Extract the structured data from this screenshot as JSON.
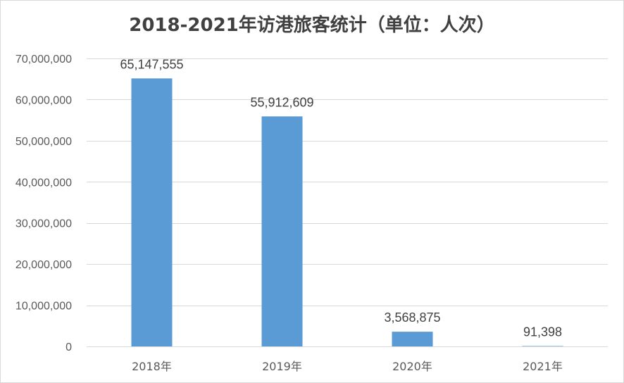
{
  "chart_data": {
    "type": "bar",
    "title": "2018-2021年访港旅客统计（单位：人次）",
    "categories": [
      "2018年",
      "2019年",
      "2020年",
      "2021年"
    ],
    "values": [
      65147555,
      55912609,
      3568875,
      91398
    ],
    "value_labels": [
      "65,147,555",
      "55,912,609",
      "3,568,875",
      "91,398"
    ],
    "ylim": [
      0,
      70000000
    ],
    "y_ticks": [
      0,
      10000000,
      20000000,
      30000000,
      40000000,
      50000000,
      60000000,
      70000000
    ],
    "y_tick_labels": [
      "0",
      "10,000,000",
      "20,000,000",
      "30,000,000",
      "40,000,000",
      "50,000,000",
      "60,000,000",
      "70,000,000"
    ],
    "grid": true,
    "legend": "none",
    "xlabel": "",
    "ylabel": "",
    "bar_color": "#5b9bd5",
    "grid_color": "#d9d9d9"
  }
}
